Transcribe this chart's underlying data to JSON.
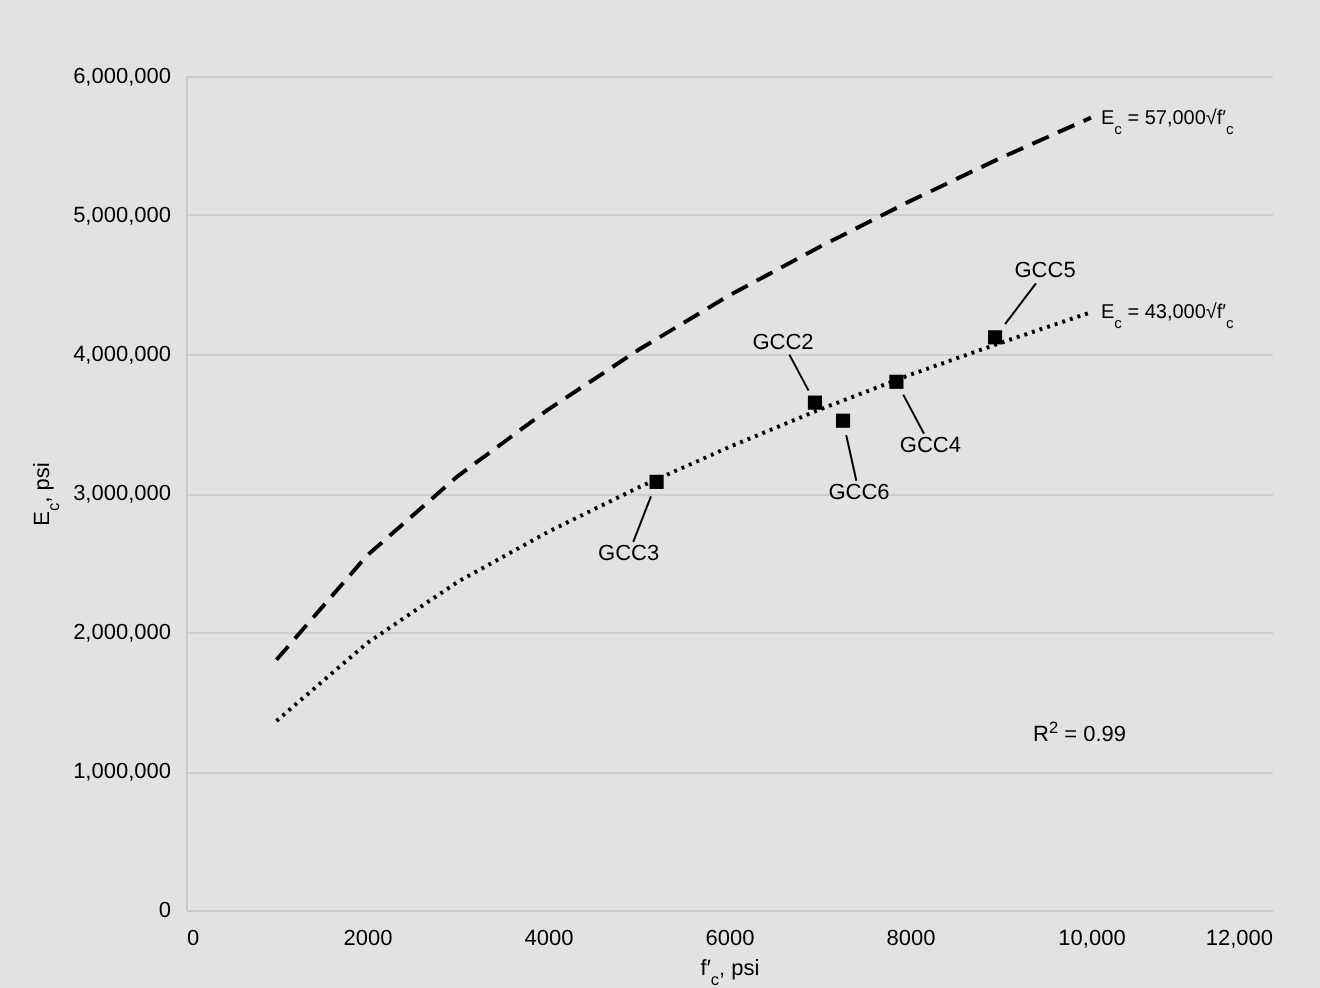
{
  "chart_data": {
    "type": "line",
    "xlabel": "f′$_{c}$, psi",
    "ylabel": "E$_{c}$, psi",
    "xlim": [
      0,
      12000
    ],
    "xticks": [
      0,
      2000,
      4000,
      6000,
      8000,
      {
        "value": 10000,
        "label": "10,000"
      },
      {
        "value": 12000,
        "label": "12,000"
      }
    ],
    "ylim": [
      0,
      6000000
    ],
    "yticks": [
      0,
      {
        "value": 1000000,
        "label": "1,000,000"
      },
      {
        "value": 2000000,
        "label": "2,000,000"
      },
      {
        "value": 3000000,
        "label": "3,000,000"
      },
      {
        "value": 4000000,
        "label": "4,000,000"
      },
      {
        "value": 5000000,
        "label": "5,000,000"
      },
      {
        "value": 6000000,
        "label": "6,000,000"
      }
    ],
    "grid": "y",
    "series": [
      {
        "type": "line",
        "color": "#000000",
        "line_style": "dashed",
        "marker": "none",
        "x": [
          1000,
          2000,
          3000,
          4000,
          5000,
          6000,
          7000,
          8000,
          9000,
          10000
        ],
        "values": [
          1800000,
          2550000,
          3120000,
          3600000,
          4030000,
          4420000,
          4770000,
          5100000,
          5410000,
          5700000
        ]
      },
      {
        "type": "line",
        "color": "#000000",
        "line_style": "dotted",
        "marker": "none",
        "x": [
          1000,
          2000,
          3000,
          4000,
          5000,
          6000,
          7000,
          8000,
          9000,
          10000
        ],
        "values": [
          1360000,
          1920000,
          2360000,
          2720000,
          3040000,
          3330000,
          3600000,
          3850000,
          4080000,
          4300000
        ]
      },
      {
        "type": "scatter",
        "color": "#000000",
        "marker": "square",
        "x": [
          5200,
          6950,
          7260,
          7850,
          8940
        ],
        "values": [
          3080000,
          3650000,
          3520000,
          3800000,
          4120000
        ]
      }
    ],
    "annotations": [
      {
        "text": "GCC3",
        "x": 5200,
        "y": 3080000
      },
      {
        "text": "GCC2",
        "x": 6950,
        "y": 3650000
      },
      {
        "text": "GCC6",
        "x": 7260,
        "y": 3520000
      },
      {
        "text": "GCC4",
        "x": 7850,
        "y": 3800000
      },
      {
        "text": "GCC5",
        "x": 8940,
        "y": 4120000
      },
      {
        "text": "E$_{c}$ = 57,000√f′$_{c}$",
        "x": 10000,
        "y": 5700000
      },
      {
        "text": "E$_{c}$ = 43,000√f′$_{c}$",
        "x": 10000,
        "y": 4300000
      },
      "R$^{2}$ = 0.99"
    ]
  }
}
